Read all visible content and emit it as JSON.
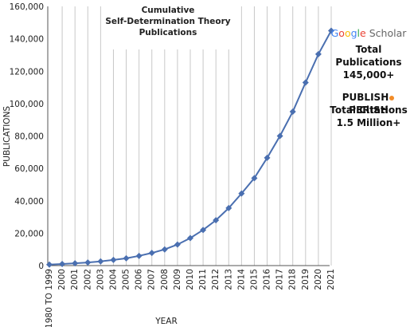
{
  "chart_data": {
    "type": "line",
    "title_lines": [
      "Cumulative",
      "Self-Determination Theory",
      "Publications"
    ],
    "xlabel": "YEAR",
    "ylabel": "PUBLICATIONS",
    "categories": [
      "1980 TO 1999",
      "2000",
      "2001",
      "2002",
      "2003",
      "2004",
      "2005",
      "2006",
      "2007",
      "2008",
      "2009",
      "2010",
      "2011",
      "2012",
      "2013",
      "2014",
      "2015",
      "2016",
      "2017",
      "2018",
      "2019",
      "2020",
      "2021"
    ],
    "series": [
      {
        "values": [
          600,
          1000,
          1400,
          1900,
          2600,
          3500,
          4500,
          6000,
          7800,
          10000,
          13000,
          17000,
          22000,
          28000,
          35500,
          44500,
          54000,
          66500,
          80000,
          95000,
          113000,
          130500,
          145000
        ],
        "color": "#4a6fb0"
      }
    ],
    "ylim": [
      0,
      160000
    ],
    "yticks": [
      0,
      20000,
      40000,
      60000,
      80000,
      100000,
      120000,
      140000,
      160000
    ],
    "ytick_labels": [
      "0",
      "20,000",
      "40,000",
      "60,000",
      "80,000",
      "100,000",
      "120,000",
      "140,000",
      "160,000"
    ],
    "grid": "vertical",
    "gridline_color": "#c8c8c8",
    "marker": "diamond"
  },
  "side_panel": {
    "google_scholar": {
      "logo_letters": [
        {
          "ch": "G",
          "color": "#4285F4"
        },
        {
          "ch": "o",
          "color": "#EA4335"
        },
        {
          "ch": "o",
          "color": "#FBBC05"
        },
        {
          "ch": "g",
          "color": "#4285F4"
        },
        {
          "ch": "l",
          "color": "#34A853"
        },
        {
          "ch": "e",
          "color": "#EA4335"
        }
      ],
      "logo_suffix": "Scholar",
      "logo_suffix_color": "#666666",
      "line1": "Total Publications",
      "line2": "145,000+"
    },
    "publish_perish": {
      "left": "PUBLISH",
      "right": "PERISH",
      "dot_color": "#f28c28",
      "line1": "Total Citations",
      "line2": "1.5 Million+"
    }
  }
}
